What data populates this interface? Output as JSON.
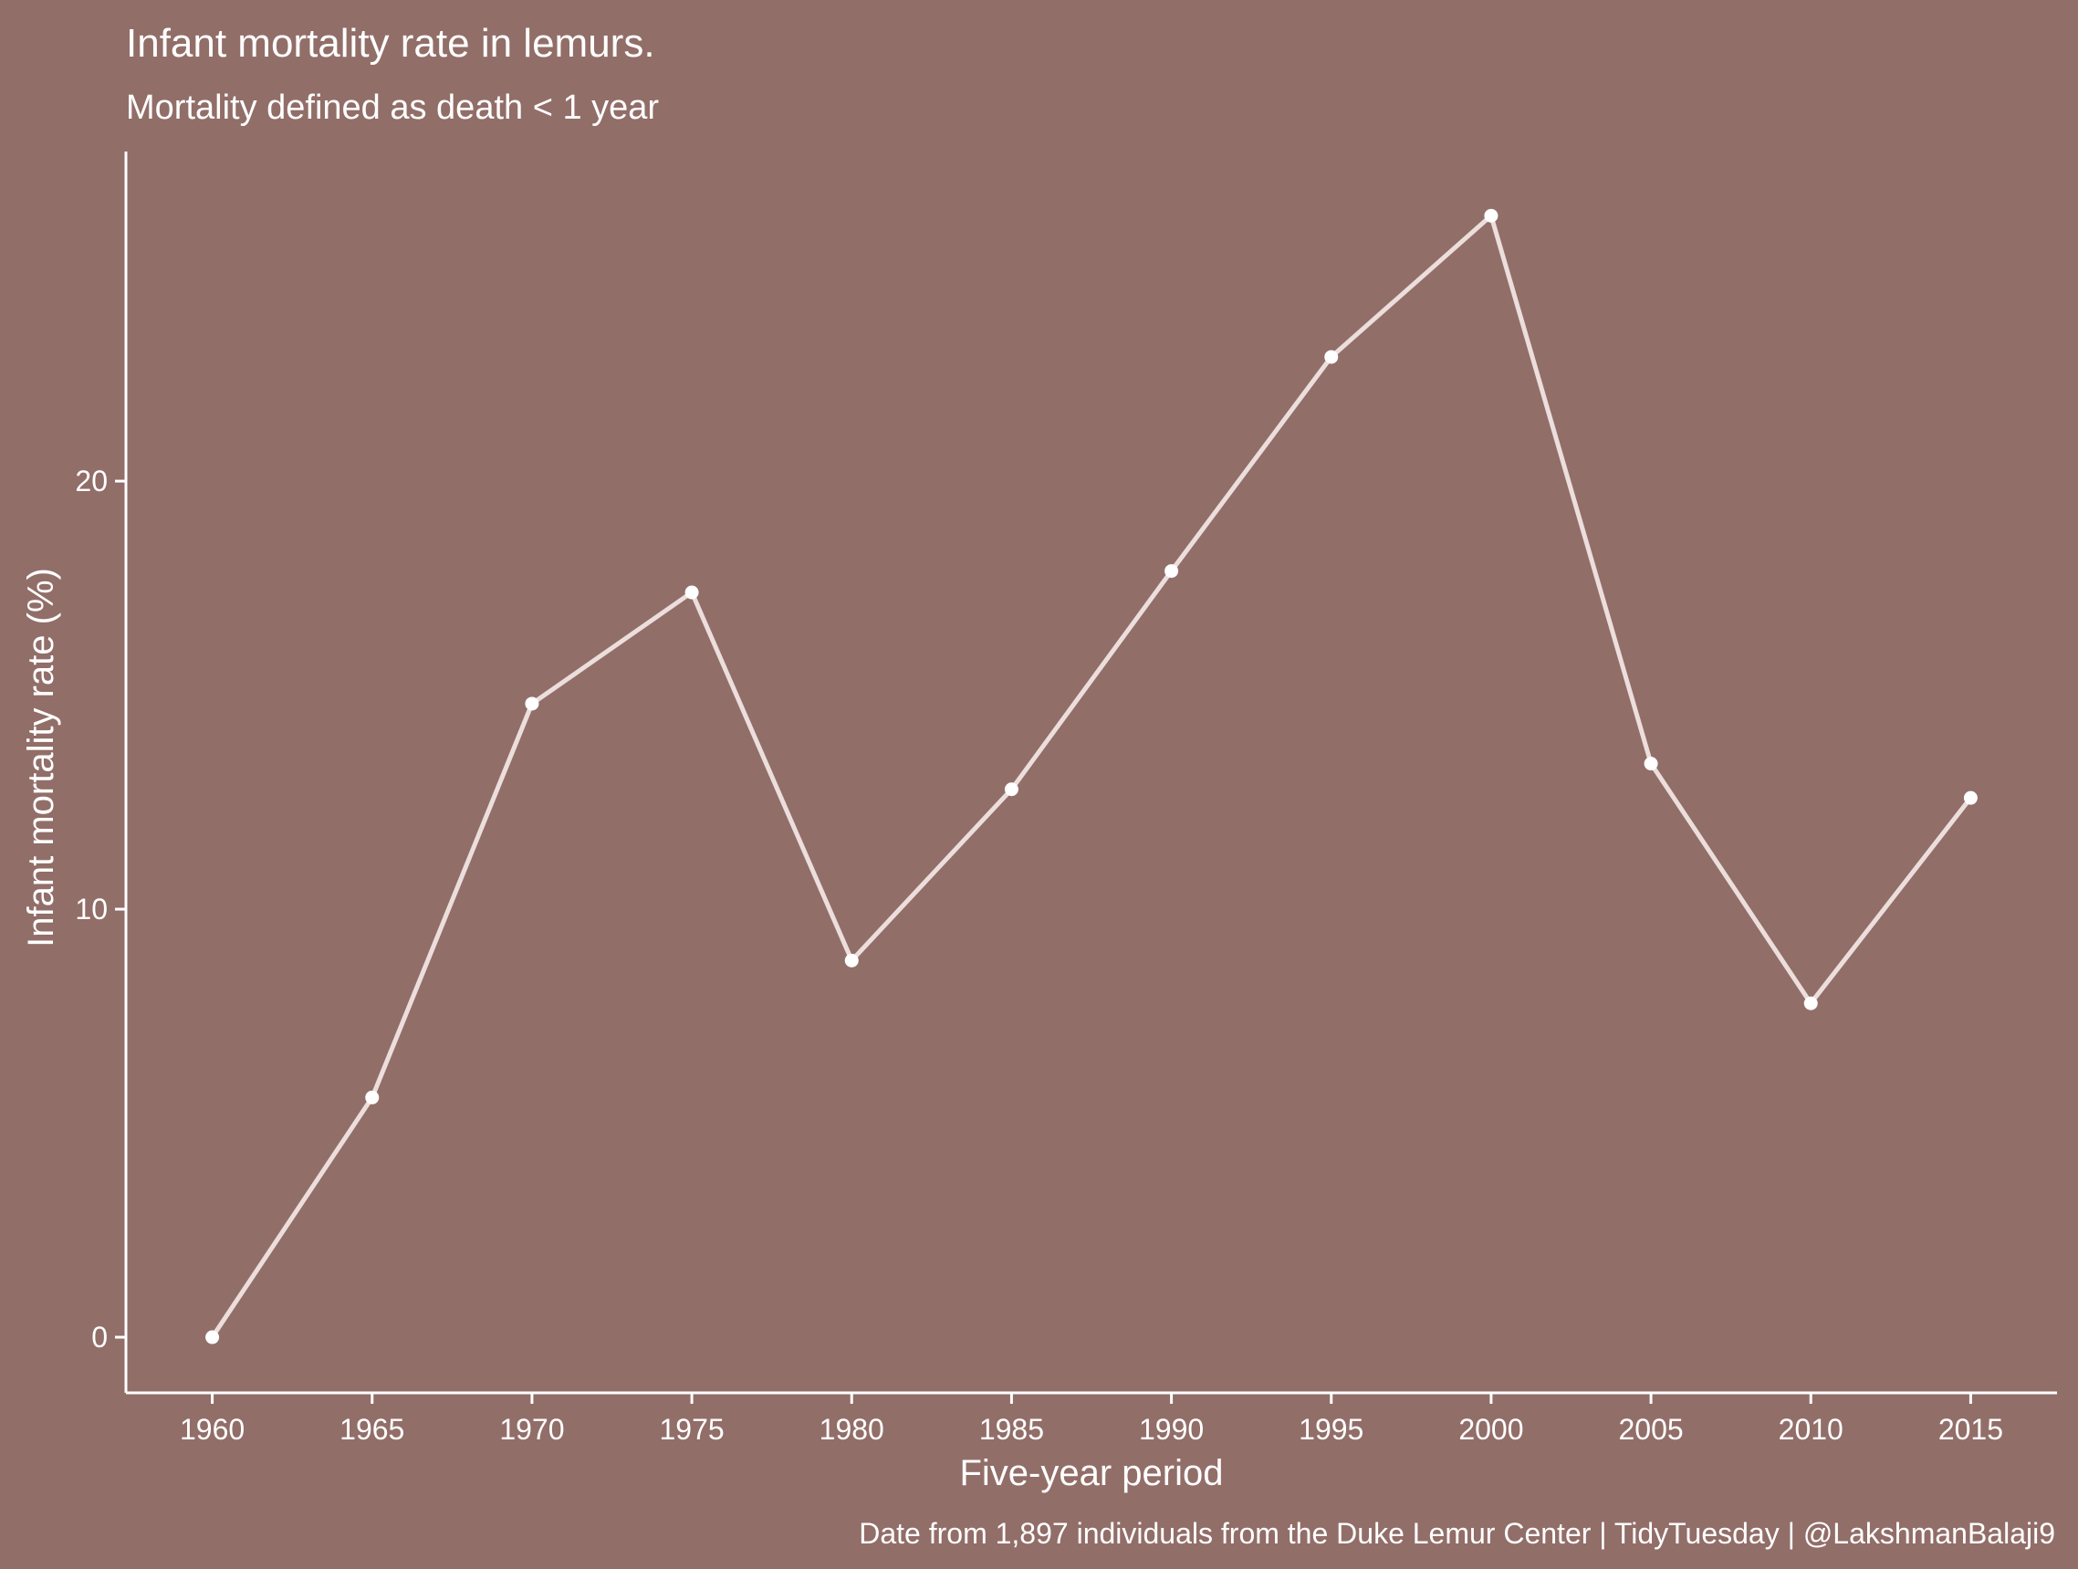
{
  "chart_data": {
    "type": "line",
    "title": "Infant mortality rate in lemurs.",
    "subtitle": "Mortality defined as death < 1 year",
    "caption": "Date from 1,897 individuals from the Duke Lemur Center | TidyTuesday | @LakshmanBalaji9",
    "xlabel": "Five-year period",
    "ylabel": "Infant mortality rate (%)",
    "x": [
      1960,
      1965,
      1970,
      1975,
      1980,
      1985,
      1990,
      1995,
      2000,
      2005,
      2010,
      2015
    ],
    "x_tick_labels": [
      "1960",
      "1965",
      "1970",
      "1975",
      "1980",
      "1985",
      "1990",
      "1995",
      "2000",
      "2005",
      "2010",
      "2015"
    ],
    "y_ticks": [
      0,
      10,
      20
    ],
    "y_tick_labels": [
      "0",
      "10",
      "20"
    ],
    "series": [
      {
        "values": [
          0.0,
          5.6,
          14.8,
          17.4,
          8.8,
          12.8,
          17.9,
          22.9,
          26.2,
          13.4,
          7.8,
          12.6
        ]
      }
    ],
    "xlim": [
      1957.3,
      2017.7
    ],
    "ylim": [
      -1.3,
      27.7
    ],
    "grid": false,
    "legend": "none",
    "colors": {
      "background": "#926e69",
      "line": "#ecdedc",
      "point": "#ffffff",
      "text": "#ffffff",
      "axis": "#ffffff"
    }
  }
}
